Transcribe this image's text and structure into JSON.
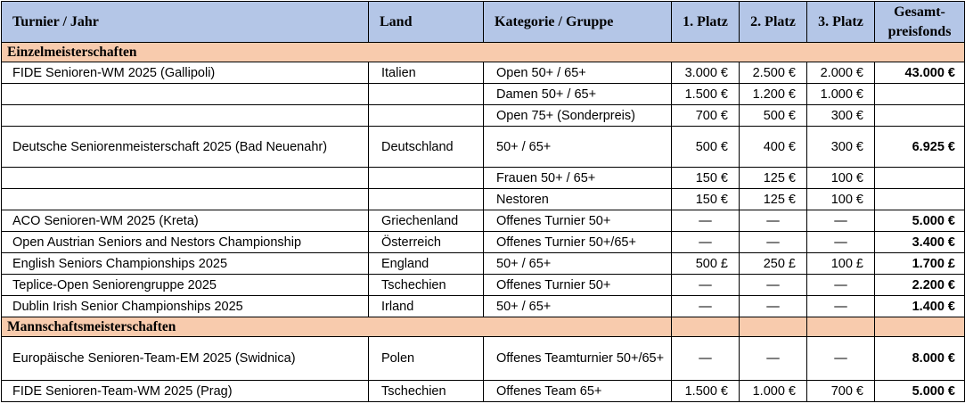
{
  "header": {
    "turnier": "Turnier / Jahr",
    "land": "Land",
    "kategorie": "Kategorie / Gruppe",
    "platz1": "1. Platz",
    "platz2": "2. Platz",
    "platz3": "3. Platz",
    "total": "Gesamt-preisfonds"
  },
  "sections": {
    "einzel": "Einzelmeisterschaften",
    "mannschaft": "Mannschaftsmeisterschaften"
  },
  "rows": [
    {
      "turnier": "FIDE Senioren-WM 2025 (Gallipoli)",
      "land": "Italien",
      "kategorie": "Open 50+ / 65+",
      "p1": "3.000 €",
      "p2": "2.500 €",
      "p3": "2.000 €",
      "total": "43.000 €"
    },
    {
      "turnier": "",
      "land": "",
      "kategorie": "Damen 50+ / 65+",
      "p1": "1.500 €",
      "p2": "1.200 €",
      "p3": "1.000 €",
      "total": ""
    },
    {
      "turnier": "",
      "land": "",
      "kategorie": "Open 75+ (Sonderpreis)",
      "p1": "700 €",
      "p2": "500 €",
      "p3": "300 €",
      "total": ""
    },
    {
      "turnier": "Deutsche Seniorenmeisterschaft 2025 (Bad Neuenahr)",
      "land": "Deutschland",
      "kategorie": "50+ / 65+",
      "p1": "500 €",
      "p2": "400 €",
      "p3": "300 €",
      "total": "6.925 €"
    },
    {
      "turnier": "",
      "land": "",
      "kategorie": "Frauen 50+ / 65+",
      "p1": "150 €",
      "p2": "125 €",
      "p3": "100 €",
      "total": ""
    },
    {
      "turnier": "",
      "land": "",
      "kategorie": "Nestoren",
      "p1": "150 €",
      "p2": "125 €",
      "p3": "100 €",
      "total": ""
    },
    {
      "turnier": "ACO Senioren-WM 2025 (Kreta)",
      "land": "Griechenland",
      "kategorie": "Offenes Turnier 50+",
      "p1": "—",
      "p2": "—",
      "p3": "—",
      "total": "5.000 €"
    },
    {
      "turnier": "Open Austrian Seniors and Nestors Championship",
      "land": "Österreich",
      "kategorie": "Offenes Turnier 50+/65+",
      "p1": "—",
      "p2": "—",
      "p3": "—",
      "total": "3.400 €"
    },
    {
      "turnier": "English Seniors Championships 2025",
      "land": "England",
      "kategorie": "50+ / 65+",
      "p1": "500 £",
      "p2": "250 £",
      "p3": "100 £",
      "total": "1.700 £"
    },
    {
      "turnier": "Teplice-Open Seniorengruppe 2025",
      "land": "Tschechien",
      "kategorie": "Offenes Turnier 50+",
      "p1": "—",
      "p2": "—",
      "p3": "—",
      "total": "2.200 €"
    },
    {
      "turnier": "Dublin Irish Senior Championships 2025",
      "land": "Irland",
      "kategorie": "50+ / 65+",
      "p1": "—",
      "p2": "—",
      "p3": "—",
      "total": "1.400 €"
    },
    {
      "turnier": "Europäische Senioren-Team-EM 2025 (Swidnica)",
      "land": "Polen",
      "kategorie": "Offenes Teamturnier 50+/65+",
      "p1": "—",
      "p2": "—",
      "p3": "—",
      "total": "8.000 €"
    },
    {
      "turnier": "FIDE Senioren-Team-WM 2025 (Prag)",
      "land": "Tschechien",
      "kategorie": "Offenes Team 65+",
      "p1": "1.500 €",
      "p2": "1.000 €",
      "p3": "700 €",
      "total": "5.000 €"
    }
  ]
}
